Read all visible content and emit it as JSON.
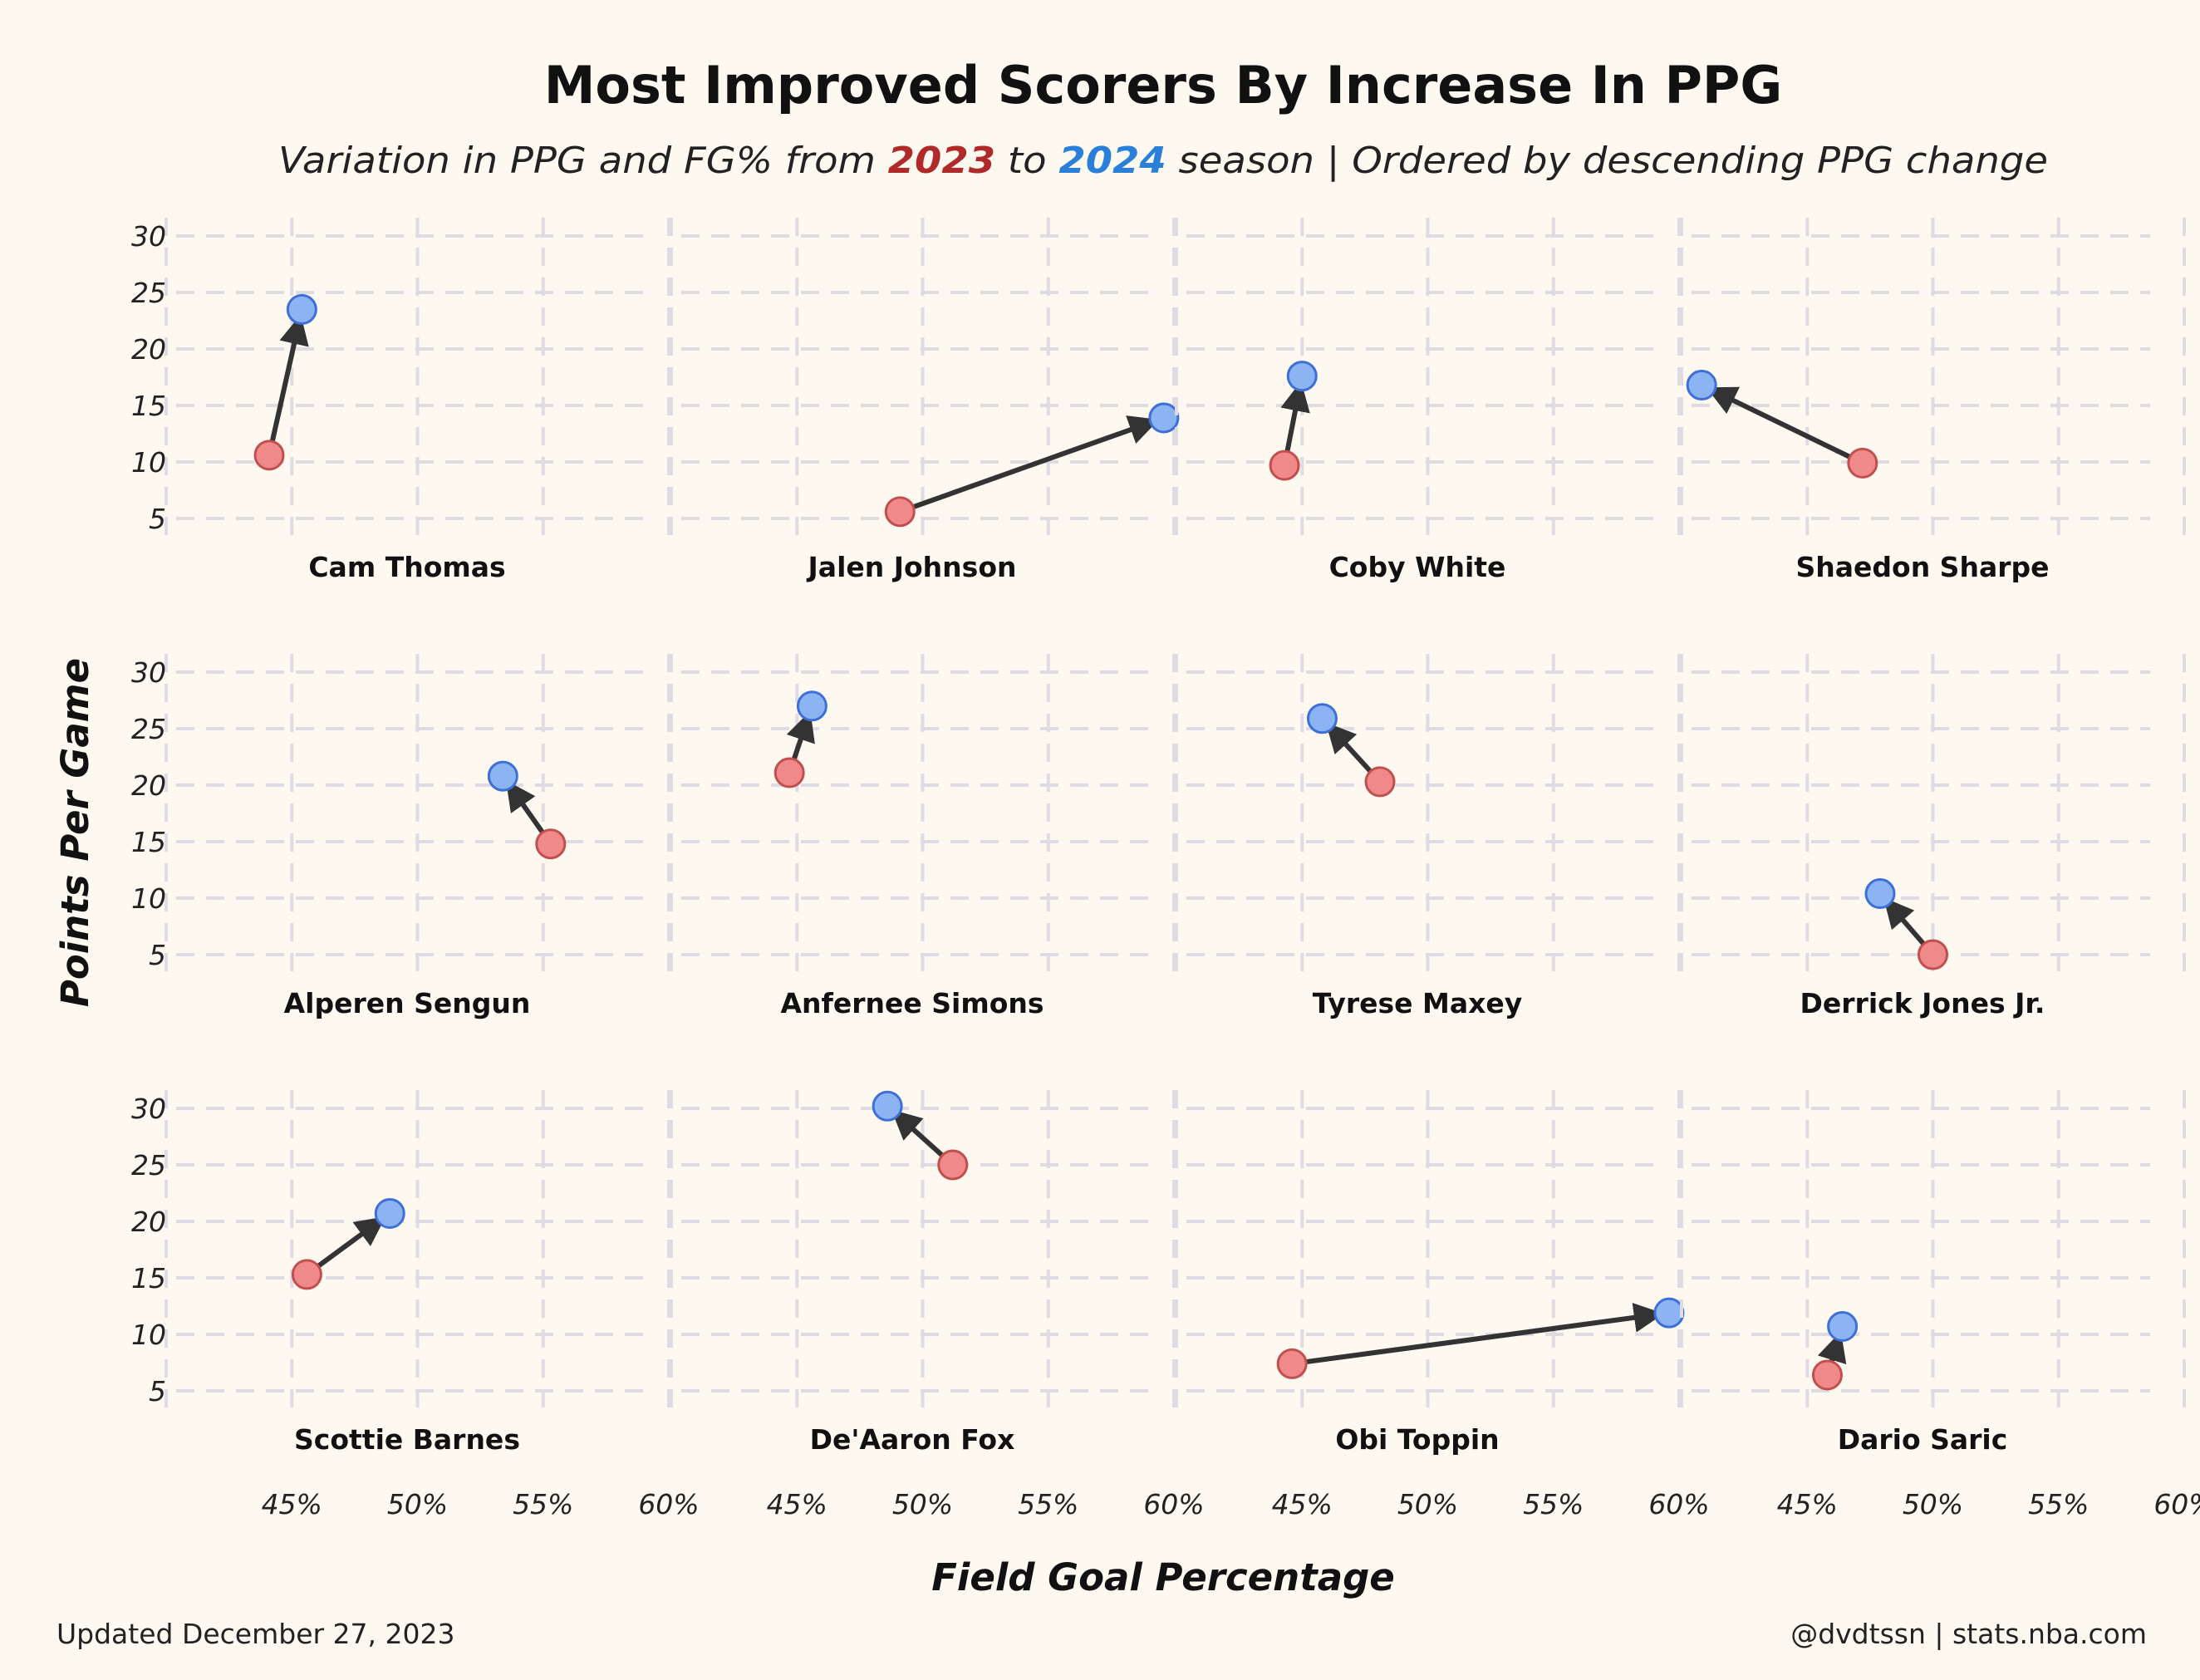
{
  "header": {
    "title": "Most Improved Scorers By Increase In PPG",
    "subtitle_prefix": "Variation in PPG and FG% from ",
    "subtitle_year_a": "2023",
    "subtitle_middle": " to ",
    "subtitle_year_b": "2024",
    "subtitle_suffix": " season | Ordered by descending PPG change"
  },
  "footer": {
    "left": "Updated December 27, 2023",
    "right": "@dvdtssn | stats.nba.com"
  },
  "colors": {
    "background": "#fdf9f0",
    "color_2023": "#f08a8a",
    "color_2024": "#8cb4f2",
    "year_2023_text": "#b02a2a",
    "year_2024_text": "#2a7fd8",
    "arrow": "#333333",
    "grid": "#dedbe3"
  },
  "chart_data": {
    "type": "scatter",
    "subtype": "arrow-plot small multiples",
    "xlabel": "Field Goal Percentage",
    "ylabel": "Points Per Game",
    "xlim": [
      40,
      60
    ],
    "ylim": [
      3,
      30
    ],
    "xticks": [
      45,
      50,
      55,
      60
    ],
    "xtick_labels": [
      "45%",
      "50%",
      "55%",
      "60%"
    ],
    "yticks": [
      5,
      10,
      15,
      20,
      25,
      30
    ],
    "ytick_labels": [
      "5",
      "10",
      "15",
      "20",
      "25",
      "30"
    ],
    "grid": true,
    "grid_style": "dashed",
    "series_names": [
      "2023",
      "2024"
    ],
    "players": [
      {
        "name": "Cam Thomas",
        "fg_2023": 44.1,
        "ppg_2023": 10.6,
        "fg_2024": 45.4,
        "ppg_2024": 23.5
      },
      {
        "name": "Jalen Johnson",
        "fg_2023": 49.1,
        "ppg_2023": 5.6,
        "fg_2024": 59.6,
        "ppg_2024": 13.9
      },
      {
        "name": "Coby White",
        "fg_2023": 44.3,
        "ppg_2023": 9.7,
        "fg_2024": 45.0,
        "ppg_2024": 17.6
      },
      {
        "name": "Shaedon Sharpe",
        "fg_2023": 47.2,
        "ppg_2023": 9.9,
        "fg_2024": 40.8,
        "ppg_2024": 16.8
      },
      {
        "name": "Alperen Sengun",
        "fg_2023": 55.3,
        "ppg_2023": 14.8,
        "fg_2024": 53.4,
        "ppg_2024": 20.8
      },
      {
        "name": "Anfernee Simons",
        "fg_2023": 44.7,
        "ppg_2023": 21.1,
        "fg_2024": 45.6,
        "ppg_2024": 27.0
      },
      {
        "name": "Tyrese Maxey",
        "fg_2023": 48.1,
        "ppg_2023": 20.3,
        "fg_2024": 45.8,
        "ppg_2024": 25.9
      },
      {
        "name": "Derrick Jones Jr.",
        "fg_2023": 50.0,
        "ppg_2023": 5.0,
        "fg_2024": 47.9,
        "ppg_2024": 10.4
      },
      {
        "name": "Scottie Barnes",
        "fg_2023": 45.6,
        "ppg_2023": 15.3,
        "fg_2024": 48.9,
        "ppg_2024": 20.7
      },
      {
        "name": "De'Aaron Fox",
        "fg_2023": 51.2,
        "ppg_2023": 25.0,
        "fg_2024": 48.6,
        "ppg_2024": 30.2
      },
      {
        "name": "Obi Toppin",
        "fg_2023": 44.6,
        "ppg_2023": 7.4,
        "fg_2024": 59.6,
        "ppg_2024": 11.9
      },
      {
        "name": "Dario Saric",
        "fg_2023": 45.8,
        "ppg_2023": 6.4,
        "fg_2024": 46.4,
        "ppg_2024": 10.7
      }
    ]
  }
}
